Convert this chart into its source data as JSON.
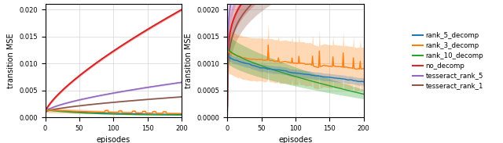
{
  "xlabel": "episodes",
  "ylabel": "transition MSE",
  "legend_labels": [
    "rank_5_decomp",
    "rank_3_decomp",
    "rank_10_decomp",
    "no_decomp",
    "tesseract_rank_5",
    "tesseract_rank_1"
  ],
  "colors": {
    "rank_5_decomp": "#1f77b4",
    "rank_3_decomp": "#ff7f0e",
    "rank_10_decomp": "#2ca02c",
    "no_decomp": "#d62728",
    "tesseract_rank_5": "#9467bd",
    "tesseract_rank_1": "#8c564b"
  },
  "left_ylim": [
    0,
    0.021
  ],
  "right_ylim": [
    0,
    0.0021
  ],
  "x_max": 200,
  "n_points": 201
}
